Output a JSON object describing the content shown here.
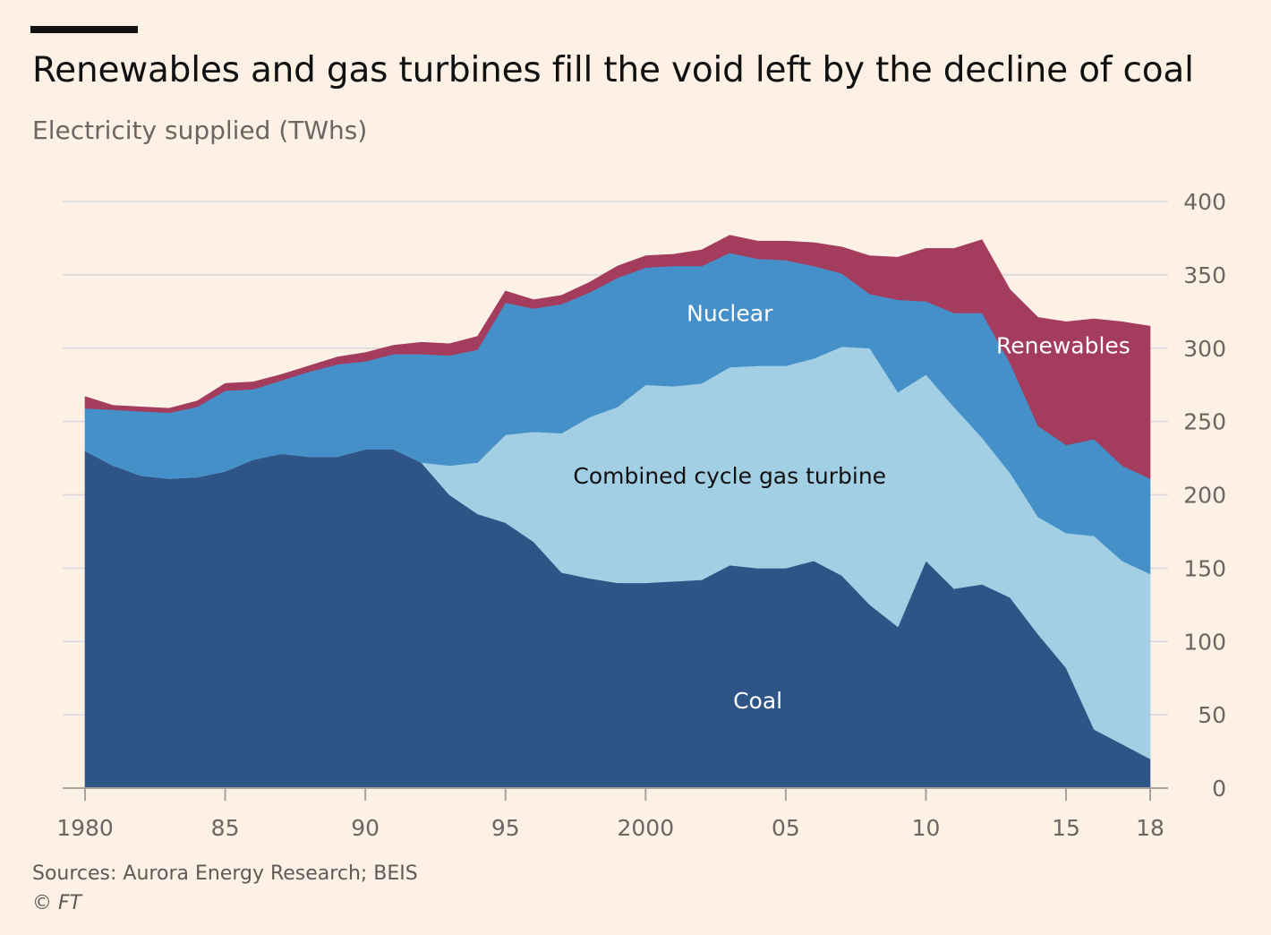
{
  "header": {
    "title": "Renewables and gas turbines fill the void left by the decline of coal",
    "subtitle": "Electricity supplied (TWhs)"
  },
  "footer": {
    "source": "Sources: Aurora Energy Research; BEIS",
    "credit": "© FT"
  },
  "chart_data": {
    "type": "area",
    "stacked": true,
    "title": "Renewables and gas turbines fill the void left by the decline of coal",
    "subtitle": "Electricity supplied (TWhs)",
    "x": [
      1980,
      1981,
      1982,
      1983,
      1984,
      1985,
      1986,
      1987,
      1988,
      1989,
      1990,
      1991,
      1992,
      1993,
      1994,
      1995,
      1996,
      1997,
      1998,
      1999,
      2000,
      2001,
      2002,
      2003,
      2004,
      2005,
      2006,
      2007,
      2008,
      2009,
      2010,
      2011,
      2012,
      2013,
      2014,
      2015,
      2016,
      2017,
      2018
    ],
    "x_ticks": [
      1980,
      1985,
      1990,
      1995,
      2000,
      2005,
      2010,
      2015,
      2018
    ],
    "x_tick_labels": [
      "1980",
      "85",
      "90",
      "95",
      "2000",
      "05",
      "10",
      "15",
      "18"
    ],
    "y_ticks": [
      0,
      50,
      100,
      150,
      200,
      250,
      300,
      350,
      400
    ],
    "y_tick_labels": [
      "0",
      "50",
      "100",
      "150",
      "200",
      "250",
      "300",
      "350",
      "400"
    ],
    "ylim": [
      0,
      400
    ],
    "y_axis_side": "right",
    "grid": true,
    "legend": "none",
    "series": [
      {
        "name": "Coal",
        "color": "#2f5586",
        "label_color": "#ffffff",
        "label_at": [
          2004,
          60
        ],
        "values": [
          230,
          220,
          213,
          211,
          212,
          216,
          224,
          228,
          226,
          226,
          231,
          231,
          222,
          200,
          187,
          181,
          168,
          147,
          143,
          140,
          140,
          141,
          142,
          152,
          150,
          150,
          155,
          145,
          125,
          110,
          155,
          136,
          139,
          130,
          105,
          82,
          40,
          30,
          20
        ]
      },
      {
        "name": "Combined cycle gas turbine",
        "color": "#a2cfe4",
        "label_color": "#111111",
        "label_at": [
          2003,
          213
        ],
        "values": [
          0,
          0,
          0,
          0,
          0,
          0,
          0,
          0,
          0,
          0,
          0,
          0,
          0,
          20,
          35,
          60,
          75,
          95,
          110,
          120,
          135,
          133,
          134,
          135,
          138,
          138,
          138,
          156,
          175,
          160,
          127,
          124,
          100,
          85,
          80,
          92,
          132,
          125,
          126
        ]
      },
      {
        "name": "Nuclear",
        "color": "#4590c8",
        "label_color": "#ffffff",
        "label_at": [
          2003,
          324
        ],
        "values": [
          29,
          38,
          44,
          45,
          48,
          55,
          48,
          50,
          58,
          63,
          60,
          65,
          74,
          75,
          77,
          90,
          84,
          88,
          85,
          88,
          80,
          82,
          80,
          78,
          73,
          72,
          63,
          50,
          37,
          63,
          50,
          64,
          85,
          75,
          62,
          60,
          66,
          65,
          65
        ]
      },
      {
        "name": "Renewables",
        "color": "#a43c5e",
        "label_color": "#ffffff",
        "label_at": [
          2014.9,
          302
        ],
        "values": [
          8,
          3,
          3,
          3,
          4,
          5,
          5,
          4,
          4,
          5,
          6,
          6,
          8,
          8,
          9,
          8,
          6,
          6,
          7,
          8,
          8,
          8,
          11,
          12,
          12,
          13,
          16,
          18,
          26,
          29,
          36,
          44,
          50,
          50,
          74,
          84,
          82,
          98,
          104
        ]
      }
    ]
  }
}
